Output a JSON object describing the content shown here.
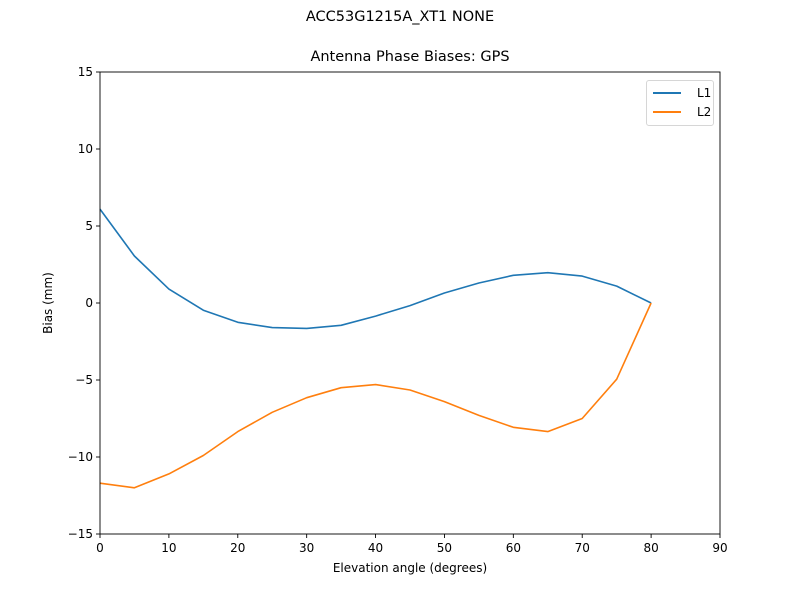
{
  "chart_data": {
    "type": "line",
    "suptitle": "ACC53G1215A_XT1 NONE",
    "title": "Antenna Phase Biases: GPS",
    "xlabel": "Elevation angle (degrees)",
    "ylabel": "Bias (mm)",
    "xlim": [
      0,
      90
    ],
    "ylim": [
      -15,
      15
    ],
    "xticks": [
      0,
      10,
      20,
      30,
      40,
      50,
      60,
      70,
      80,
      90
    ],
    "yticks": [
      -15,
      -10,
      -5,
      0,
      5,
      10,
      15
    ],
    "ytick_labels": [
      "−15",
      "−10",
      "−5",
      "0",
      "5",
      "10",
      "15"
    ],
    "grid": false,
    "legend_position": "upper right",
    "x": [
      0,
      5,
      10,
      15,
      20,
      25,
      30,
      35,
      40,
      45,
      50,
      55,
      60,
      65,
      70,
      75,
      80
    ],
    "series": [
      {
        "name": "L1",
        "color": "#1f77b4",
        "values": [
          6.1,
          3.05,
          0.9,
          -0.47,
          -1.25,
          -1.6,
          -1.65,
          -1.45,
          -0.85,
          -0.17,
          0.65,
          1.3,
          1.8,
          1.97,
          1.75,
          1.1,
          0.0
        ]
      },
      {
        "name": "L2",
        "color": "#ff7f0e",
        "values": [
          -11.7,
          -12.0,
          -11.1,
          -9.9,
          -8.35,
          -7.1,
          -6.15,
          -5.5,
          -5.3,
          -5.65,
          -6.4,
          -7.3,
          -8.07,
          -8.35,
          -7.5,
          -4.95,
          0.0
        ]
      }
    ]
  }
}
